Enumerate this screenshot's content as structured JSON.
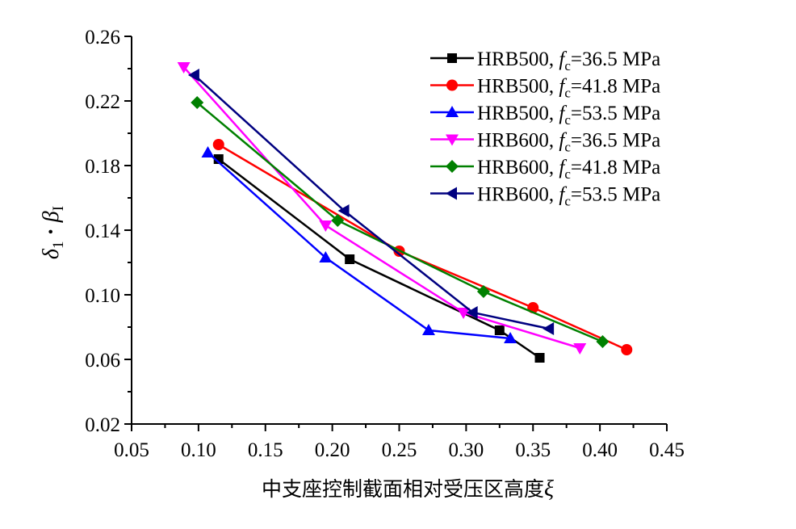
{
  "chart_data": {
    "type": "line",
    "xlabel": "中支座控制截面相对受压区高度",
    "xlabel_symbol": "ξ",
    "ylabel": {
      "symbol1": "δ",
      "sub1": "1",
      "dot": "·",
      "symbol2": "β",
      "sub2": "I"
    },
    "xlim": [
      0.05,
      0.45
    ],
    "ylim": [
      0.02,
      0.26
    ],
    "xticks": [
      0.05,
      0.1,
      0.15,
      0.2,
      0.25,
      0.3,
      0.35,
      0.4,
      0.45
    ],
    "xtick_labels": [
      "0.05",
      "0.10",
      "0.15",
      "0.20",
      "0.25",
      "0.30",
      "0.35",
      "0.40",
      "0.45"
    ],
    "yticks": [
      0.02,
      0.06,
      0.1,
      0.14,
      0.18,
      0.22,
      0.26
    ],
    "ytick_labels": [
      "0.02",
      "0.06",
      "0.10",
      "0.14",
      "0.18",
      "0.22",
      "0.26"
    ],
    "grid": false,
    "legend_position": "top-right",
    "series": [
      {
        "steel": "HRB500",
        "fc_value": "=36.5 MPa",
        "color": "#000000",
        "marker": "square",
        "points": [
          [
            0.115,
            0.184
          ],
          [
            0.213,
            0.122
          ],
          [
            0.325,
            0.078
          ],
          [
            0.355,
            0.061
          ]
        ]
      },
      {
        "steel": "HRB500",
        "fc_value": "=41.8 MPa",
        "color": "#ff0000",
        "marker": "circle",
        "points": [
          [
            0.115,
            0.193
          ],
          [
            0.25,
            0.127
          ],
          [
            0.35,
            0.092
          ],
          [
            0.42,
            0.066
          ]
        ]
      },
      {
        "steel": "HRB500",
        "fc_value": "=53.5 MPa",
        "color": "#0000ff",
        "marker": "triangle-up",
        "points": [
          [
            0.107,
            0.188
          ],
          [
            0.195,
            0.123
          ],
          [
            0.272,
            0.078
          ],
          [
            0.333,
            0.073
          ]
        ]
      },
      {
        "steel": "HRB600",
        "fc_value": "=36.5 MPa",
        "color": "#ff00ff",
        "marker": "triangle-down",
        "points": [
          [
            0.089,
            0.241
          ],
          [
            0.195,
            0.143
          ],
          [
            0.298,
            0.089
          ],
          [
            0.385,
            0.067
          ]
        ]
      },
      {
        "steel": "HRB600",
        "fc_value": "=41.8 MPa",
        "color": "#008000",
        "marker": "diamond",
        "points": [
          [
            0.099,
            0.219
          ],
          [
            0.204,
            0.146
          ],
          [
            0.313,
            0.102
          ],
          [
            0.402,
            0.071
          ]
        ]
      },
      {
        "steel": "HRB600",
        "fc_value": "=53.5 MPa",
        "color": "#000080",
        "marker": "triangle-left",
        "points": [
          [
            0.097,
            0.236
          ],
          [
            0.209,
            0.152
          ],
          [
            0.305,
            0.089
          ],
          [
            0.362,
            0.079
          ]
        ]
      }
    ]
  },
  "legend_symbol": {
    "f": "f",
    "sub": "c"
  }
}
